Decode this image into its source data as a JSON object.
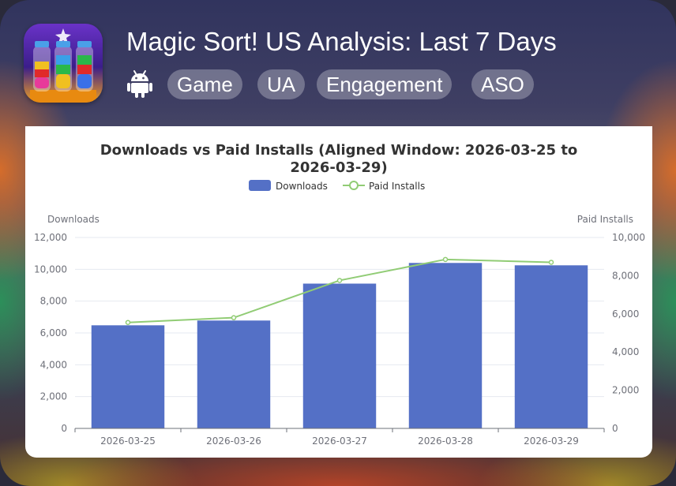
{
  "header": {
    "title": "Magic Sort! US Analysis: Last 7 Days",
    "platform_icon": "android-icon",
    "app_icon": "magic-sort-app-icon",
    "tags": [
      "Game",
      "UA",
      "Engagement",
      "ASO"
    ]
  },
  "chart_data": {
    "type": "bar",
    "title_line1": "Downloads vs Paid Installs (Aligned Window: 2026-03-25 to",
    "title_line2": "2026-03-29)",
    "categories": [
      "2026-03-25",
      "2026-03-26",
      "2026-03-27",
      "2026-03-28",
      "2026-03-29"
    ],
    "series": [
      {
        "name": "Downloads",
        "type": "bar",
        "axis": "left",
        "color": "#5470c6",
        "values": [
          6480,
          6780,
          9100,
          10400,
          10250
        ]
      },
      {
        "name": "Paid Installs",
        "type": "line",
        "axis": "right",
        "color": "#91cc75",
        "values": [
          5550,
          5800,
          7750,
          8850,
          8700
        ]
      }
    ],
    "ylabel_left": "Downloads",
    "ylabel_right": "Paid Installs",
    "ylim_left": [
      0,
      12000
    ],
    "ylim_right": [
      0,
      10000
    ],
    "yticks_left": [
      "0",
      "2,000",
      "4,000",
      "6,000",
      "8,000",
      "10,000",
      "12,000"
    ],
    "yticks_right": [
      "0",
      "2,000",
      "4,000",
      "6,000",
      "8,000",
      "10,000"
    ],
    "legend_position": "top-center",
    "grid": true
  }
}
